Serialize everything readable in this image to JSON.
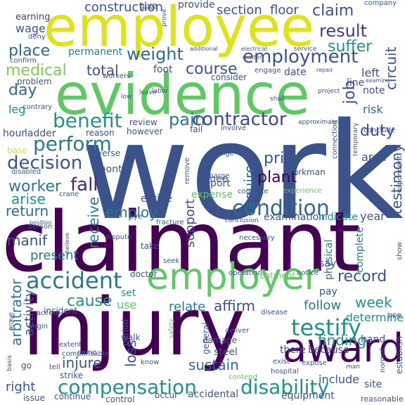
{
  "words": [
    {
      "text": "work",
      "color": "#3b528b"
    },
    {
      "text": "claimant",
      "color": "#440154"
    },
    {
      "text": "injury",
      "color": "#440154"
    },
    {
      "text": "employee",
      "color": "#dde318"
    },
    {
      "text": "evidence",
      "color": "#5ec962"
    },
    {
      "text": "employer",
      "color": "#5ec962"
    },
    {
      "text": "award",
      "color": "#440154"
    },
    {
      "text": "condition",
      "color": "#31688e"
    },
    {
      "text": "accident",
      "color": "#2a788e"
    },
    {
      "text": "testify",
      "color": "#21918c"
    },
    {
      "text": "compensation",
      "color": "#21918c"
    },
    {
      "text": "disability",
      "color": "#21918c"
    },
    {
      "text": "employment",
      "color": "#3b528b"
    },
    {
      "text": "benefit",
      "color": "#21918c"
    },
    {
      "text": "contractor",
      "color": "#3e4989"
    },
    {
      "text": "decision",
      "color": "#3b528b"
    },
    {
      "text": "perform",
      "color": "#2a788e"
    },
    {
      "text": "medical",
      "color": "#7ad151"
    },
    {
      "text": "worker",
      "color": "#2a788e"
    },
    {
      "text": "fall",
      "color": "#482878"
    },
    {
      "text": "weight",
      "color": "#31688e"
    },
    {
      "text": "result",
      "color": "#443983"
    },
    {
      "text": "suffer",
      "color": "#21918c"
    },
    {
      "text": "place",
      "color": "#31688e"
    },
    {
      "text": "claim",
      "color": "#3b528b"
    },
    {
      "text": "pain",
      "color": "#2a788e"
    },
    {
      "text": "duty",
      "color": "#3b528b"
    },
    {
      "text": "day",
      "color": "#31688e"
    },
    {
      "text": "total",
      "color": "#3b528b"
    },
    {
      "text": "course",
      "color": "#3b528b"
    },
    {
      "text": "prior",
      "color": "#3b528b"
    },
    {
      "text": "plant",
      "color": "#440154"
    },
    {
      "text": "arise",
      "color": "#21918c"
    },
    {
      "text": "return",
      "color": "#31688e"
    },
    {
      "text": "employ",
      "color": "#2a788e"
    },
    {
      "text": "week",
      "color": "#21918c"
    },
    {
      "text": "record",
      "color": "#3b528b"
    },
    {
      "text": "cause",
      "color": "#21918c"
    },
    {
      "text": "affirm",
      "color": "#3b528b"
    },
    {
      "text": "relate",
      "color": "#2a788e"
    },
    {
      "text": "finding",
      "color": "#21918c"
    },
    {
      "text": "follow",
      "color": "#2a788e"
    },
    {
      "text": "determine",
      "color": "#21918c"
    },
    {
      "text": "injure",
      "color": "#3b528b"
    },
    {
      "text": "sustain",
      "color": "#31688e"
    },
    {
      "text": "manif",
      "color": "#3b528b"
    },
    {
      "text": "present",
      "color": "#2a788e"
    },
    {
      "text": "right",
      "color": "#3b528b"
    },
    {
      "text": "construction",
      "color": "#3b528b"
    },
    {
      "text": "earning",
      "color": "#443983"
    },
    {
      "text": "wage",
      "color": "#3b528b"
    },
    {
      "text": "section",
      "color": "#3b528b"
    },
    {
      "text": "floor",
      "color": "#3b528b"
    },
    {
      "text": "provide",
      "color": "#3b528b"
    },
    {
      "text": "permanent",
      "color": "#2a788e"
    },
    {
      "text": "require",
      "color": "#31688e"
    },
    {
      "text": "testimony",
      "color": "#3b528b"
    },
    {
      "text": "job",
      "color": "#3b528b"
    },
    {
      "text": "circuit",
      "color": "#3b528b"
    },
    {
      "text": "receive",
      "color": "#2a788e"
    },
    {
      "text": "support",
      "color": "#3e4989"
    },
    {
      "text": "loss",
      "color": "#3b528b"
    },
    {
      "text": "arbitrator",
      "color": "#2a788e"
    },
    {
      "text": "activity",
      "color": "#3b528b"
    },
    {
      "text": "knee",
      "color": "#3b528b"
    },
    {
      "text": "leg",
      "color": "#21918c"
    },
    {
      "text": "risk",
      "color": "#31688e"
    },
    {
      "text": "hour",
      "color": "#3b528b"
    },
    {
      "text": "ladder",
      "color": "#3b528b"
    },
    {
      "text": "year",
      "color": "#3b528b"
    },
    {
      "text": "left",
      "color": "#3b528b"
    },
    {
      "text": "note",
      "color": "#3b528b"
    },
    {
      "text": "line",
      "color": "#3b528b"
    },
    {
      "text": "date",
      "color": "#3b528b"
    },
    {
      "text": "foot",
      "color": "#3b528b"
    },
    {
      "text": "area",
      "color": "#3b528b"
    },
    {
      "text": "use",
      "color": "#5ec962"
    },
    {
      "text": "set",
      "color": "#21918c"
    },
    {
      "text": "month",
      "color": "#3b528b"
    },
    {
      "text": "report",
      "color": "#3b528b"
    },
    {
      "text": "indicate",
      "color": "#21918c"
    },
    {
      "text": "expense",
      "color": "#5ec962"
    },
    {
      "text": "entitle",
      "color": "#3b528b"
    },
    {
      "text": "examination",
      "color": "#3b528b"
    },
    {
      "text": "say",
      "color": "#3b528b"
    },
    {
      "text": "pay",
      "color": "#3b528b"
    },
    {
      "text": "complete",
      "color": "#2a788e"
    },
    {
      "text": "physical",
      "color": "#31688e"
    },
    {
      "text": "steel",
      "color": "#3b528b"
    },
    {
      "text": "there",
      "color": "#3b528b"
    },
    {
      "text": "because",
      "color": "#3b528b"
    },
    {
      "text": "hand",
      "color": "#3b528b"
    },
    {
      "text": "include",
      "color": "#3b528b"
    },
    {
      "text": "equipment",
      "color": "#3b528b"
    },
    {
      "text": "continue",
      "color": "#3b528b"
    },
    {
      "text": "issue",
      "color": "#3b528b"
    },
    {
      "text": "occur",
      "color": "#3b528b"
    },
    {
      "text": "accidental",
      "color": "#3b528b"
    },
    {
      "text": "control",
      "color": "#3b528b"
    },
    {
      "text": "strike",
      "color": "#3b528b"
    },
    {
      "text": "hospital",
      "color": "#3b528b"
    },
    {
      "text": "site",
      "color": "#3b528b"
    },
    {
      "text": "reasonable",
      "color": "#3b528b"
    },
    {
      "text": "give",
      "color": "#3b528b"
    },
    {
      "text": "base",
      "color": "#dde318"
    },
    {
      "text": "reverse",
      "color": "#3b528b"
    },
    {
      "text": "review",
      "color": "#3b528b"
    },
    {
      "text": "however",
      "color": "#3b528b"
    },
    {
      "text": "fail",
      "color": "#3b528b"
    },
    {
      "text": "reason",
      "color": "#3b528b"
    },
    {
      "text": "conclude",
      "color": "#3b528b"
    },
    {
      "text": "workman",
      "color": "#3b528b"
    },
    {
      "text": "experience",
      "color": "#5ec962"
    },
    {
      "text": "connection",
      "color": "#3b528b"
    },
    {
      "text": "respondent",
      "color": "#3b528b"
    },
    {
      "text": "temporary",
      "color": "#3b528b"
    },
    {
      "text": "approximately",
      "color": "#3b528b"
    },
    {
      "text": "involve",
      "color": "#3b528b"
    },
    {
      "text": "disabled",
      "color": "#3b528b"
    },
    {
      "text": "crane",
      "color": "#3b528b"
    },
    {
      "text": "eye",
      "color": "#3b528b"
    },
    {
      "text": "remove",
      "color": "#3b528b"
    },
    {
      "text": "change",
      "color": "#3b528b"
    },
    {
      "text": "charge",
      "color": "#3b528b"
    },
    {
      "text": "concrete",
      "color": "#3b528b"
    },
    {
      "text": "fracture",
      "color": "#3b528b"
    },
    {
      "text": "dispute",
      "color": "#3b528b"
    },
    {
      "text": "take",
      "color": "#3b528b"
    },
    {
      "text": "doctor",
      "color": "#3b528b"
    },
    {
      "text": "seek",
      "color": "#3b528b"
    },
    {
      "text": "operation",
      "color": "#3b528b"
    },
    {
      "text": "treatment",
      "color": "#5ec962"
    },
    {
      "text": "notice",
      "color": "#3b528b"
    },
    {
      "text": "necessary",
      "color": "#3b528b"
    },
    {
      "text": "conclusion",
      "color": "#3b528b"
    },
    {
      "text": "incident",
      "color": "#3b528b"
    },
    {
      "text": "accord",
      "color": "#3b528b"
    },
    {
      "text": "begin",
      "color": "#3b528b"
    },
    {
      "text": "argue",
      "color": "#3b528b"
    },
    {
      "text": "go",
      "color": "#3b528b"
    },
    {
      "text": "tell",
      "color": "#3b528b"
    },
    {
      "text": "basis",
      "color": "#3b528b"
    },
    {
      "text": "compensable",
      "color": "#3b528b"
    },
    {
      "text": "walk",
      "color": "#3b528b"
    },
    {
      "text": "period",
      "color": "#3b528b"
    },
    {
      "text": "know",
      "color": "#3b528b"
    },
    {
      "text": "come",
      "color": "#3b528b"
    },
    {
      "text": "damage",
      "color": "#3b528b"
    },
    {
      "text": "general",
      "color": "#3b528b"
    },
    {
      "text": "deliver",
      "color": "#3b528b"
    },
    {
      "text": "contend",
      "color": "#5ec962"
    },
    {
      "text": "exist",
      "color": "#3b528b"
    },
    {
      "text": "expose",
      "color": "#3b528b"
    },
    {
      "text": "establish",
      "color": "#3b528b"
    },
    {
      "text": "normal",
      "color": "#3b528b"
    },
    {
      "text": "disease",
      "color": "#3b528b"
    },
    {
      "text": "safety",
      "color": "#5ec962"
    },
    {
      "text": "man",
      "color": "#3b528b"
    },
    {
      "text": "show",
      "color": "#3b528b"
    },
    {
      "text": "ppe",
      "color": "#3b528b"
    },
    {
      "text": "extent",
      "color": "#3b528b"
    },
    {
      "text": "labor",
      "color": "#3b528b"
    },
    {
      "text": "person",
      "color": "#3b528b"
    },
    {
      "text": "position",
      "color": "#3b528b"
    },
    {
      "text": "believe",
      "color": "#3b528b"
    },
    {
      "text": "low",
      "color": "#3b528b"
    },
    {
      "text": "contrary",
      "color": "#3b528b"
    },
    {
      "text": "problem",
      "color": "#3b528b"
    },
    {
      "text": "confirm",
      "color": "#3b528b"
    },
    {
      "text": "workers",
      "color": "#3b528b"
    },
    {
      "text": "consider",
      "color": "#3b528b"
    },
    {
      "text": "engage",
      "color": "#3b528b"
    },
    {
      "text": "additional",
      "color": "#3b528b"
    },
    {
      "text": "electrical",
      "color": "#3b528b"
    },
    {
      "text": "service",
      "color": "#3b528b"
    },
    {
      "text": "company",
      "color": "#3b528b"
    },
    {
      "text": "project",
      "color": "#3b528b"
    },
    {
      "text": "repair",
      "color": "#3b528b"
    },
    {
      "text": "examine",
      "color": "#3b528b"
    },
    {
      "text": "shall",
      "color": "#3b528b"
    },
    {
      "text": "leave",
      "color": "#3b528b"
    },
    {
      "text": "prove",
      "color": "#3b528b"
    },
    {
      "text": "lose",
      "color": "#3b528b"
    },
    {
      "text": "deny",
      "color": "#3b528b"
    },
    {
      "text": "matter",
      "color": "#3b528b"
    }
  ]
}
